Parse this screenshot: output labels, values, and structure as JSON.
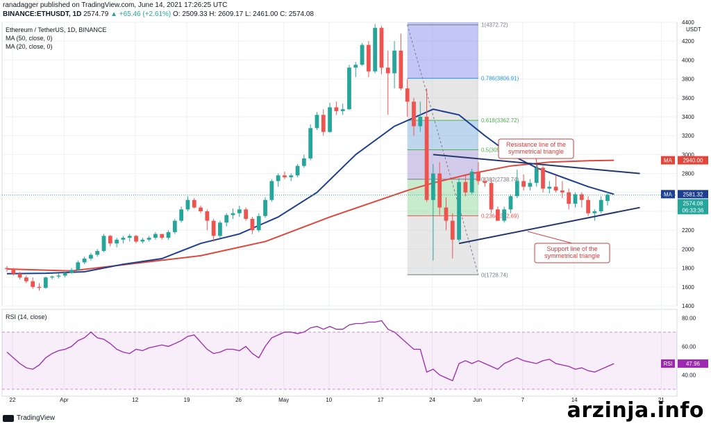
{
  "header": {
    "publisher_line": "ranadagger published on TradingView.com, June 14, 2021 17:26:25 UTC",
    "symbol": "BINANCE:ETHUSDT, 1D",
    "last": "2574.79",
    "change": "▲ +65.46 (+2.61%)",
    "o": "O: 2509.33",
    "h": "H: 2609.17",
    "l": "L: 2461.00",
    "c": "C: 2574.08"
  },
  "legend": {
    "title": "Ethereum / TetherUS, 1D, BINANCE",
    "ma50": "MA (50, close, 0)",
    "ma20": "MA (20, close, 0)",
    "rsi": "RSI (14, close)"
  },
  "footer": {
    "brand": "TradingView",
    "watermark": "arzinja.info"
  },
  "colors": {
    "up": "#26a69a",
    "down": "#ef5350",
    "ma20": "#1e3f8f",
    "ma50": "#e0463a",
    "rsi": "#9c27b0",
    "trend": "#24376b",
    "annot": "#d13c3c",
    "grid": "#eef0f3"
  },
  "chart_data": [
    {
      "type": "candlestick",
      "x_ticks": [
        "22",
        "Apr",
        "12",
        "19",
        "26",
        "May",
        "10",
        "17",
        "24",
        "Jun",
        "7",
        "14",
        "21"
      ],
      "ylim": [
        1400,
        4400
      ],
      "y_ticks": [
        1400,
        1600,
        1800,
        2000,
        2200,
        2400,
        2600,
        2800,
        3000,
        3200,
        3400,
        3600,
        3800,
        4000,
        4200,
        4400
      ],
      "y_axis_unit": "USDT",
      "ohlc": [
        [
          1800,
          1820,
          1760,
          1790
        ],
        [
          1790,
          1800,
          1720,
          1740
        ],
        [
          1740,
          1760,
          1680,
          1700
        ],
        [
          1700,
          1720,
          1640,
          1660
        ],
        [
          1660,
          1700,
          1580,
          1600
        ],
        [
          1600,
          1640,
          1560,
          1590
        ],
        [
          1590,
          1710,
          1580,
          1700
        ],
        [
          1700,
          1720,
          1680,
          1710
        ],
        [
          1710,
          1740,
          1690,
          1720
        ],
        [
          1720,
          1760,
          1700,
          1750
        ],
        [
          1750,
          1800,
          1740,
          1780
        ],
        [
          1780,
          1880,
          1770,
          1860
        ],
        [
          1860,
          1920,
          1840,
          1900
        ],
        [
          1900,
          1960,
          1880,
          1940
        ],
        [
          1940,
          2000,
          1920,
          1980
        ],
        [
          1980,
          2160,
          1970,
          2140
        ],
        [
          2140,
          2150,
          2030,
          2060
        ],
        [
          2060,
          2120,
          2020,
          2100
        ],
        [
          2100,
          2140,
          2060,
          2120
        ],
        [
          2120,
          2160,
          2080,
          2140
        ],
        [
          2140,
          2150,
          2060,
          2080
        ],
        [
          2080,
          2120,
          2060,
          2100
        ],
        [
          2100,
          2140,
          2080,
          2120
        ],
        [
          2120,
          2180,
          2100,
          2160
        ],
        [
          2160,
          2160,
          2100,
          2120
        ],
        [
          2120,
          2200,
          2100,
          2180
        ],
        [
          2180,
          2320,
          2160,
          2300
        ],
        [
          2300,
          2450,
          2280,
          2420
        ],
        [
          2420,
          2560,
          2400,
          2520
        ],
        [
          2520,
          2540,
          2430,
          2440
        ],
        [
          2440,
          2460,
          2380,
          2400
        ],
        [
          2400,
          2420,
          2200,
          2300
        ],
        [
          2300,
          2320,
          2080,
          2140
        ],
        [
          2140,
          2300,
          2120,
          2280
        ],
        [
          2280,
          2380,
          2240,
          2360
        ],
        [
          2360,
          2430,
          2320,
          2380
        ],
        [
          2380,
          2460,
          2340,
          2420
        ],
        [
          2420,
          2440,
          2300,
          2320
        ],
        [
          2320,
          2340,
          2160,
          2200
        ],
        [
          2200,
          2380,
          2180,
          2350
        ],
        [
          2350,
          2550,
          2330,
          2520
        ],
        [
          2520,
          2740,
          2500,
          2720
        ],
        [
          2720,
          2800,
          2660,
          2780
        ],
        [
          2780,
          2820,
          2740,
          2760
        ],
        [
          2760,
          2800,
          2720,
          2780
        ],
        [
          2780,
          2900,
          2760,
          2880
        ],
        [
          2880,
          3000,
          2860,
          2960
        ],
        [
          2960,
          3320,
          2940,
          3280
        ],
        [
          3280,
          3450,
          3260,
          3420
        ],
        [
          3420,
          3480,
          3200,
          3240
        ],
        [
          3240,
          3550,
          3230,
          3500
        ],
        [
          3500,
          3560,
          3420,
          3460
        ],
        [
          3460,
          3540,
          3420,
          3480
        ],
        [
          3480,
          3950,
          3470,
          3920
        ],
        [
          3920,
          3980,
          3820,
          3950
        ],
        [
          3950,
          4180,
          3940,
          4160
        ],
        [
          4160,
          4200,
          3820,
          3880
        ],
        [
          3880,
          4380,
          3860,
          4340
        ],
        [
          4340,
          4360,
          3850,
          3920
        ],
        [
          3920,
          4100,
          3420,
          3860
        ],
        [
          3860,
          4200,
          3700,
          4100
        ],
        [
          4100,
          4280,
          3680,
          3700
        ],
        [
          3700,
          3800,
          3400,
          3560
        ],
        [
          3560,
          3600,
          3200,
          3300
        ],
        [
          3300,
          3560,
          3240,
          3400
        ],
        [
          3400,
          3700,
          2500,
          2520
        ],
        [
          2520,
          2900,
          1880,
          2800
        ],
        [
          2800,
          2920,
          2360,
          2440
        ],
        [
          2440,
          2550,
          2200,
          2300
        ],
        [
          2300,
          2380,
          1900,
          2100
        ],
        [
          2100,
          2750,
          2080,
          2710
        ],
        [
          2710,
          2780,
          2560,
          2600
        ],
        [
          2600,
          2850,
          2580,
          2820
        ],
        [
          2820,
          2920,
          2680,
          2720
        ],
        [
          2720,
          2760,
          2660,
          2700
        ],
        [
          2700,
          2750,
          2380,
          2420
        ],
        [
          2420,
          2450,
          2300,
          2300
        ],
        [
          2300,
          2450,
          2280,
          2420
        ],
        [
          2420,
          2580,
          2380,
          2560
        ],
        [
          2560,
          2840,
          2540,
          2720
        ],
        [
          2720,
          2790,
          2620,
          2660
        ],
        [
          2660,
          2740,
          2620,
          2700
        ],
        [
          2700,
          2900,
          2660,
          2860
        ],
        [
          2860,
          2880,
          2600,
          2640
        ],
        [
          2640,
          2720,
          2590,
          2660
        ],
        [
          2660,
          2780,
          2600,
          2620
        ],
        [
          2620,
          2720,
          2540,
          2600
        ],
        [
          2600,
          2640,
          2420,
          2480
        ],
        [
          2480,
          2600,
          2440,
          2580
        ],
        [
          2580,
          2600,
          2440,
          2520
        ],
        [
          2520,
          2560,
          2350,
          2380
        ],
        [
          2380,
          2420,
          2300,
          2400
        ],
        [
          2400,
          2560,
          2380,
          2520
        ],
        [
          2509.33,
          2609.17,
          2461.0,
          2574.08
        ]
      ],
      "ma20": [
        [
          0,
          1740
        ],
        [
          6,
          1745
        ],
        [
          12,
          1760
        ],
        [
          18,
          1840
        ],
        [
          24,
          1900
        ],
        [
          30,
          2060
        ],
        [
          36,
          2160
        ],
        [
          42,
          2340
        ],
        [
          48,
          2600
        ],
        [
          54,
          3000
        ],
        [
          60,
          3300
        ],
        [
          66,
          3480
        ],
        [
          70,
          3420
        ],
        [
          74,
          3200
        ],
        [
          78,
          3000
        ],
        [
          82,
          2860
        ],
        [
          86,
          2760
        ],
        [
          90,
          2660
        ],
        [
          94,
          2581
        ]
      ],
      "ma50": [
        [
          0,
          1790
        ],
        [
          10,
          1770
        ],
        [
          20,
          1850
        ],
        [
          30,
          1930
        ],
        [
          40,
          2080
        ],
        [
          50,
          2340
        ],
        [
          56,
          2480
        ],
        [
          62,
          2620
        ],
        [
          66,
          2700
        ],
        [
          72,
          2800
        ],
        [
          78,
          2880
        ],
        [
          84,
          2920
        ],
        [
          90,
          2935
        ],
        [
          94,
          2940
        ]
      ],
      "fibonacci": [
        {
          "ratio": 1,
          "label": "1(4372.72)",
          "price": 4372.72
        },
        {
          "ratio": 0.786,
          "label": "0.786(3806.91)",
          "price": 3806.91
        },
        {
          "ratio": 0.618,
          "label": "0.618(3362.72)",
          "price": 3362.72
        },
        {
          "ratio": 0.5,
          "label": "0.5(3050.73)",
          "price": 3050.73
        },
        {
          "ratio": 0.382,
          "label": "0.382(2738.74)",
          "price": 2738.74
        },
        {
          "ratio": 0.236,
          "label": "0.236(2352.69)",
          "price": 2352.69
        },
        {
          "ratio": 0,
          "label": "0(1728.74)",
          "price": 1728.74
        }
      ],
      "trendlines": [
        {
          "name": "resistance",
          "from": [
            66,
            3000
          ],
          "to": [
            95,
            2800
          ]
        },
        {
          "name": "support",
          "from": [
            70,
            2060
          ],
          "to": [
            95,
            2440
          ]
        }
      ],
      "annotations": [
        {
          "text": "Resistance line of the symmetrical triangle",
          "lines": [
            "Resistance line of the",
            "symmetrical triangle"
          ],
          "near": "top-right"
        },
        {
          "text": "Support line of the symmetrical triangle",
          "lines": [
            "Support line of the",
            "symmetrical triangle"
          ],
          "near": "bottom-right"
        }
      ],
      "price_labels": [
        {
          "text": "MA",
          "value": "2940.00",
          "price": 2940
        },
        {
          "text": "MA",
          "value": "2581.32",
          "price": 2581.32
        },
        {
          "text": "",
          "value": "2574.08",
          "sub": "06:33:36",
          "price": 2574.08
        }
      ]
    },
    {
      "type": "line",
      "name": "RSI",
      "ylim": [
        30,
        85
      ],
      "y_ticks": [
        40,
        60,
        80
      ],
      "band": [
        30,
        70
      ],
      "last_label": "47.96",
      "values": [
        56,
        52,
        48,
        45,
        44,
        47,
        52,
        55,
        57,
        58,
        60,
        64,
        66,
        70,
        66,
        65,
        62,
        58,
        56,
        55,
        58,
        57,
        59,
        60,
        61,
        60,
        62,
        64,
        67,
        68,
        63,
        58,
        55,
        56,
        58,
        58,
        57,
        60,
        55,
        52,
        60,
        66,
        68,
        70,
        70,
        69,
        70,
        73,
        74,
        72,
        74,
        72,
        72,
        75,
        76,
        76,
        77,
        77,
        78,
        72,
        70,
        66,
        62,
        58,
        58,
        42,
        44,
        40,
        38,
        36,
        48,
        50,
        48,
        50,
        48,
        46,
        44,
        48,
        50,
        52,
        50,
        49,
        48,
        50,
        51,
        48,
        47,
        46,
        44,
        45,
        43,
        42,
        44,
        46,
        47.96
      ]
    }
  ]
}
